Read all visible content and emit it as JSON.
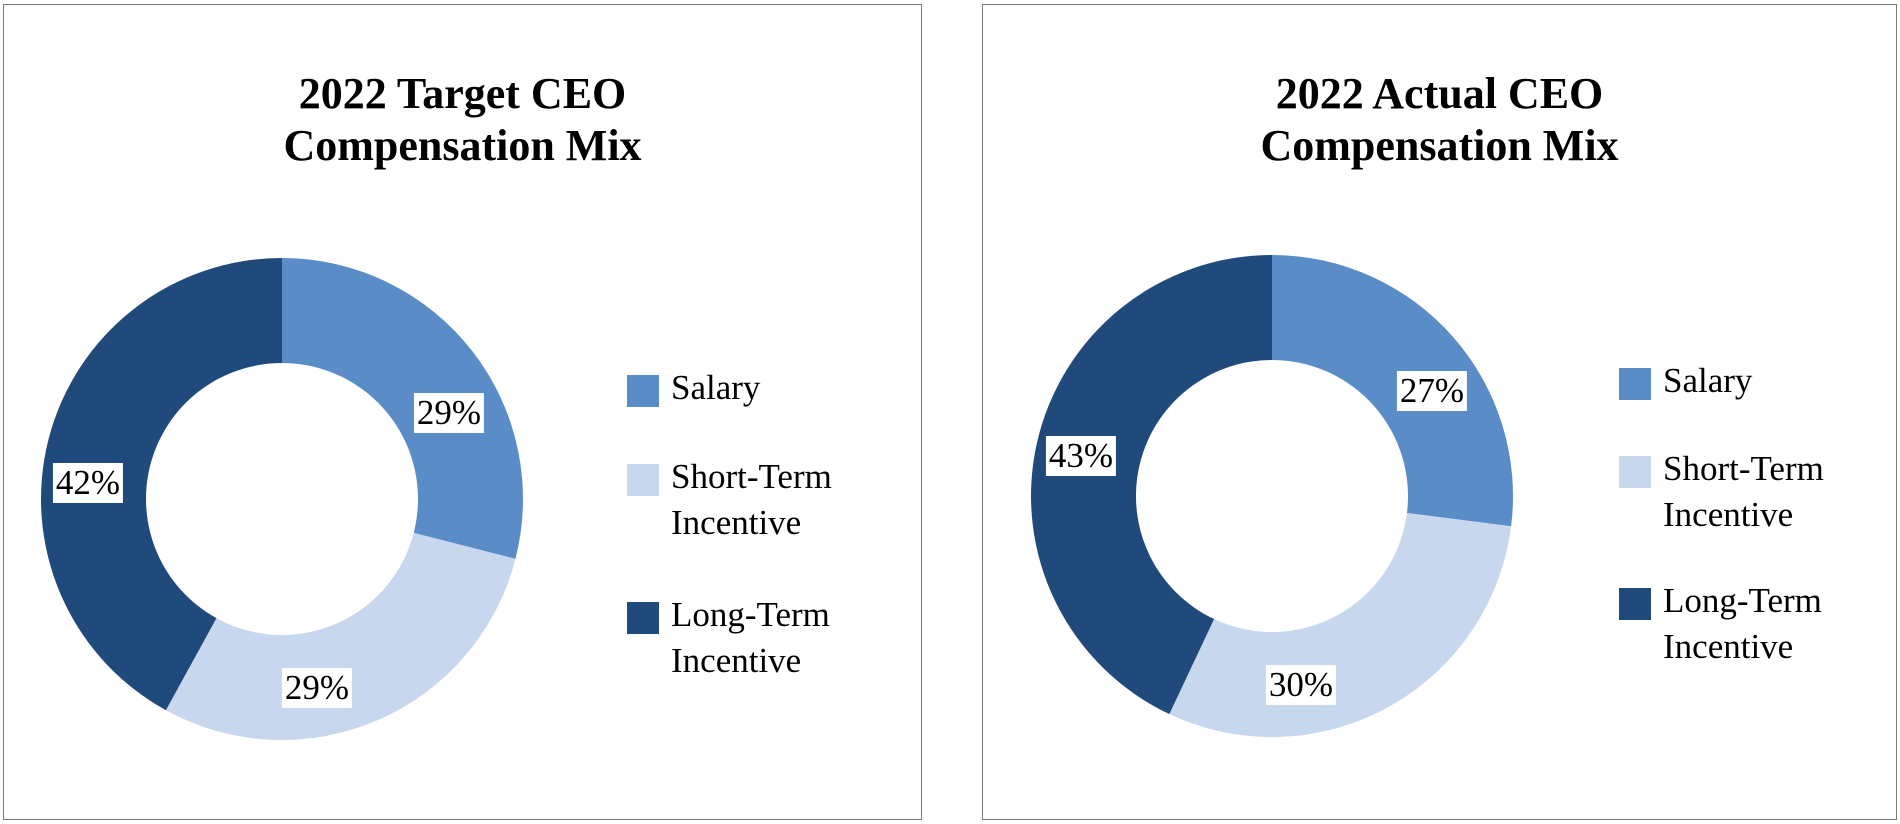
{
  "window": {
    "background": "#FFFFFF",
    "panel_border_color": "#7A7A7A",
    "text_color": "#000000"
  },
  "charts_ui": [
    {
      "title_line1": "2022 Target CEO",
      "title_line2": "Compensation Mix"
    },
    {
      "title_line1": "2022 Actual CEO",
      "title_line2": "Compensation Mix"
    }
  ],
  "chart_data": [
    {
      "type": "pie",
      "subtype": "donut",
      "title": "2022 Target CEO Compensation Mix",
      "categories": [
        "Salary",
        "Short-Term Incentive",
        "Long-Term Incentive"
      ],
      "values": [
        29,
        29,
        42
      ],
      "unit": "%",
      "data_labels": [
        "29%",
        "29%",
        "42%"
      ],
      "colors": [
        "#5A8CC8",
        "#C7D7EE",
        "#204A7C"
      ],
      "start_angle_deg": 0,
      "direction": "clockwise",
      "hole_ratio": 0.56,
      "legend_position": "right",
      "grid": false
    },
    {
      "type": "pie",
      "subtype": "donut",
      "title": "2022 Actual CEO Compensation Mix",
      "categories": [
        "Salary",
        "Short-Term Incentive",
        "Long-Term Incentive"
      ],
      "values": [
        27,
        30,
        43
      ],
      "unit": "%",
      "data_labels": [
        "27%",
        "30%",
        "43%"
      ],
      "colors": [
        "#5A8CC8",
        "#C7D7EE",
        "#204A7C"
      ],
      "start_angle_deg": 0,
      "direction": "clockwise",
      "hole_ratio": 0.56,
      "legend_position": "right",
      "grid": false
    }
  ]
}
